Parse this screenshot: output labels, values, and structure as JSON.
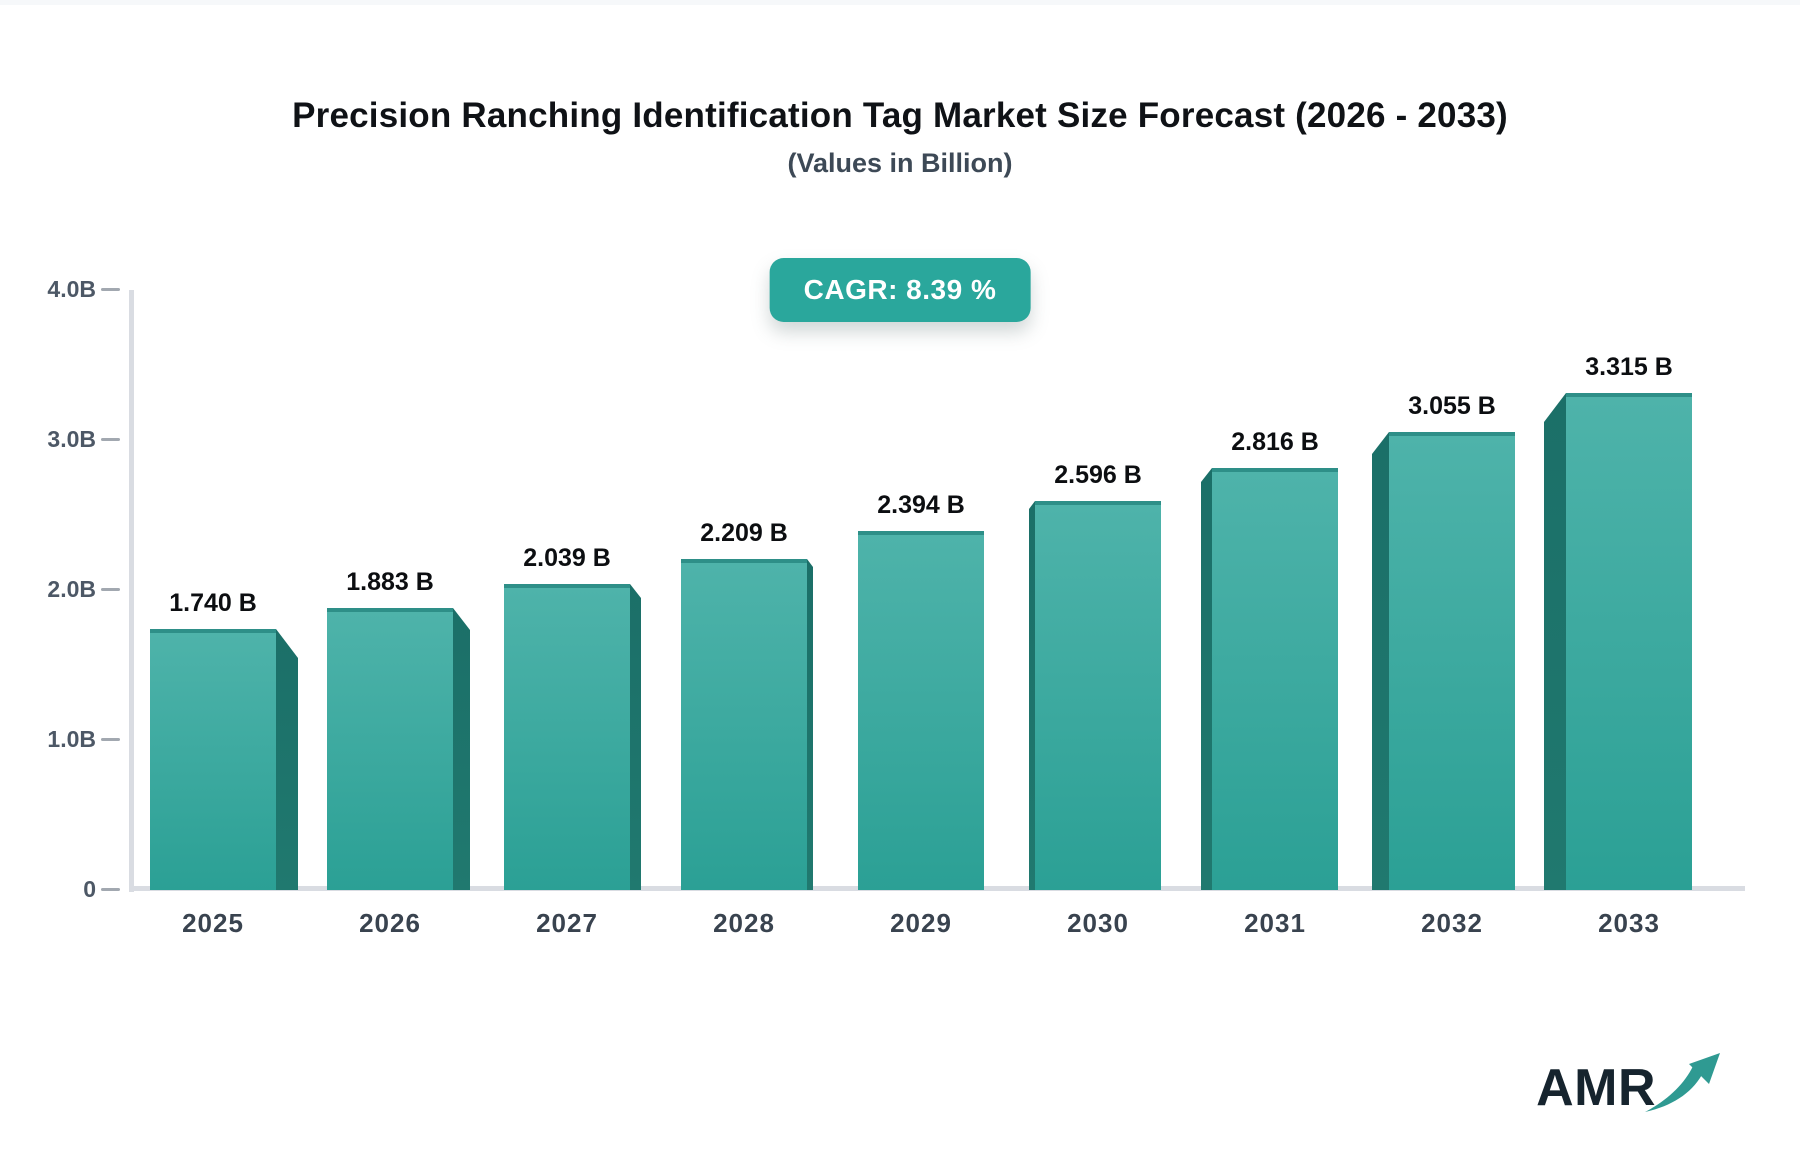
{
  "header": {
    "title": "Precision Ranching Identification Tag Market Size Forecast (2026 - 2033)",
    "subtitle": "(Values in Billion)",
    "cagr_label": "CAGR: 8.39 %"
  },
  "chart_data": {
    "type": "bar",
    "title": "Precision Ranching Identification Tag Market Size Forecast (2026 - 2033)",
    "subtitle": "(Values in Billion)",
    "cagr": "8.39 %",
    "categories": [
      "2025",
      "2026",
      "2027",
      "2028",
      "2029",
      "2030",
      "2031",
      "2032",
      "2033"
    ],
    "values": [
      1.74,
      1.883,
      2.039,
      2.209,
      2.394,
      2.596,
      2.816,
      3.055,
      3.315
    ],
    "value_labels": [
      "1.740 B",
      "1.883 B",
      "2.039 B",
      "2.209 B",
      "2.394 B",
      "2.596 B",
      "2.816 B",
      "3.055 B",
      "3.315 B"
    ],
    "xlabel": "",
    "ylabel": "",
    "ylim": [
      0,
      4.0
    ],
    "yticks": [
      {
        "value": 0,
        "label": "0"
      },
      {
        "value": 1.0,
        "label": "1.0B"
      },
      {
        "value": 2.0,
        "label": "2.0B"
      },
      {
        "value": 3.0,
        "label": "3.0B"
      },
      {
        "value": 4.0,
        "label": "4.0B"
      }
    ],
    "grid": false,
    "legend": false,
    "bar_style": "3d-perspective-center-vanishing"
  },
  "colors": {
    "bar_face_top": "#4eb3aa",
    "bar_face_bottom": "#2ba095",
    "bar_top_edge": "#2e8f88",
    "bar_side": "#1e7870",
    "badge_bg": "#2aa79c",
    "badge_text": "#ffffff",
    "axis": "#d9dce2",
    "tick_dash": "#a2a8b0",
    "ytick_text": "#4d5866",
    "xtick_text": "#39434f",
    "value_text": "#0c0e11",
    "title_text": "#0f1216",
    "subtitle_text": "#3d4956",
    "logo_text": "#16242e",
    "logo_arrow": "#2f9a92"
  },
  "logo": {
    "text": "AMR",
    "arrow_icon": "growth-arrow-icon"
  }
}
